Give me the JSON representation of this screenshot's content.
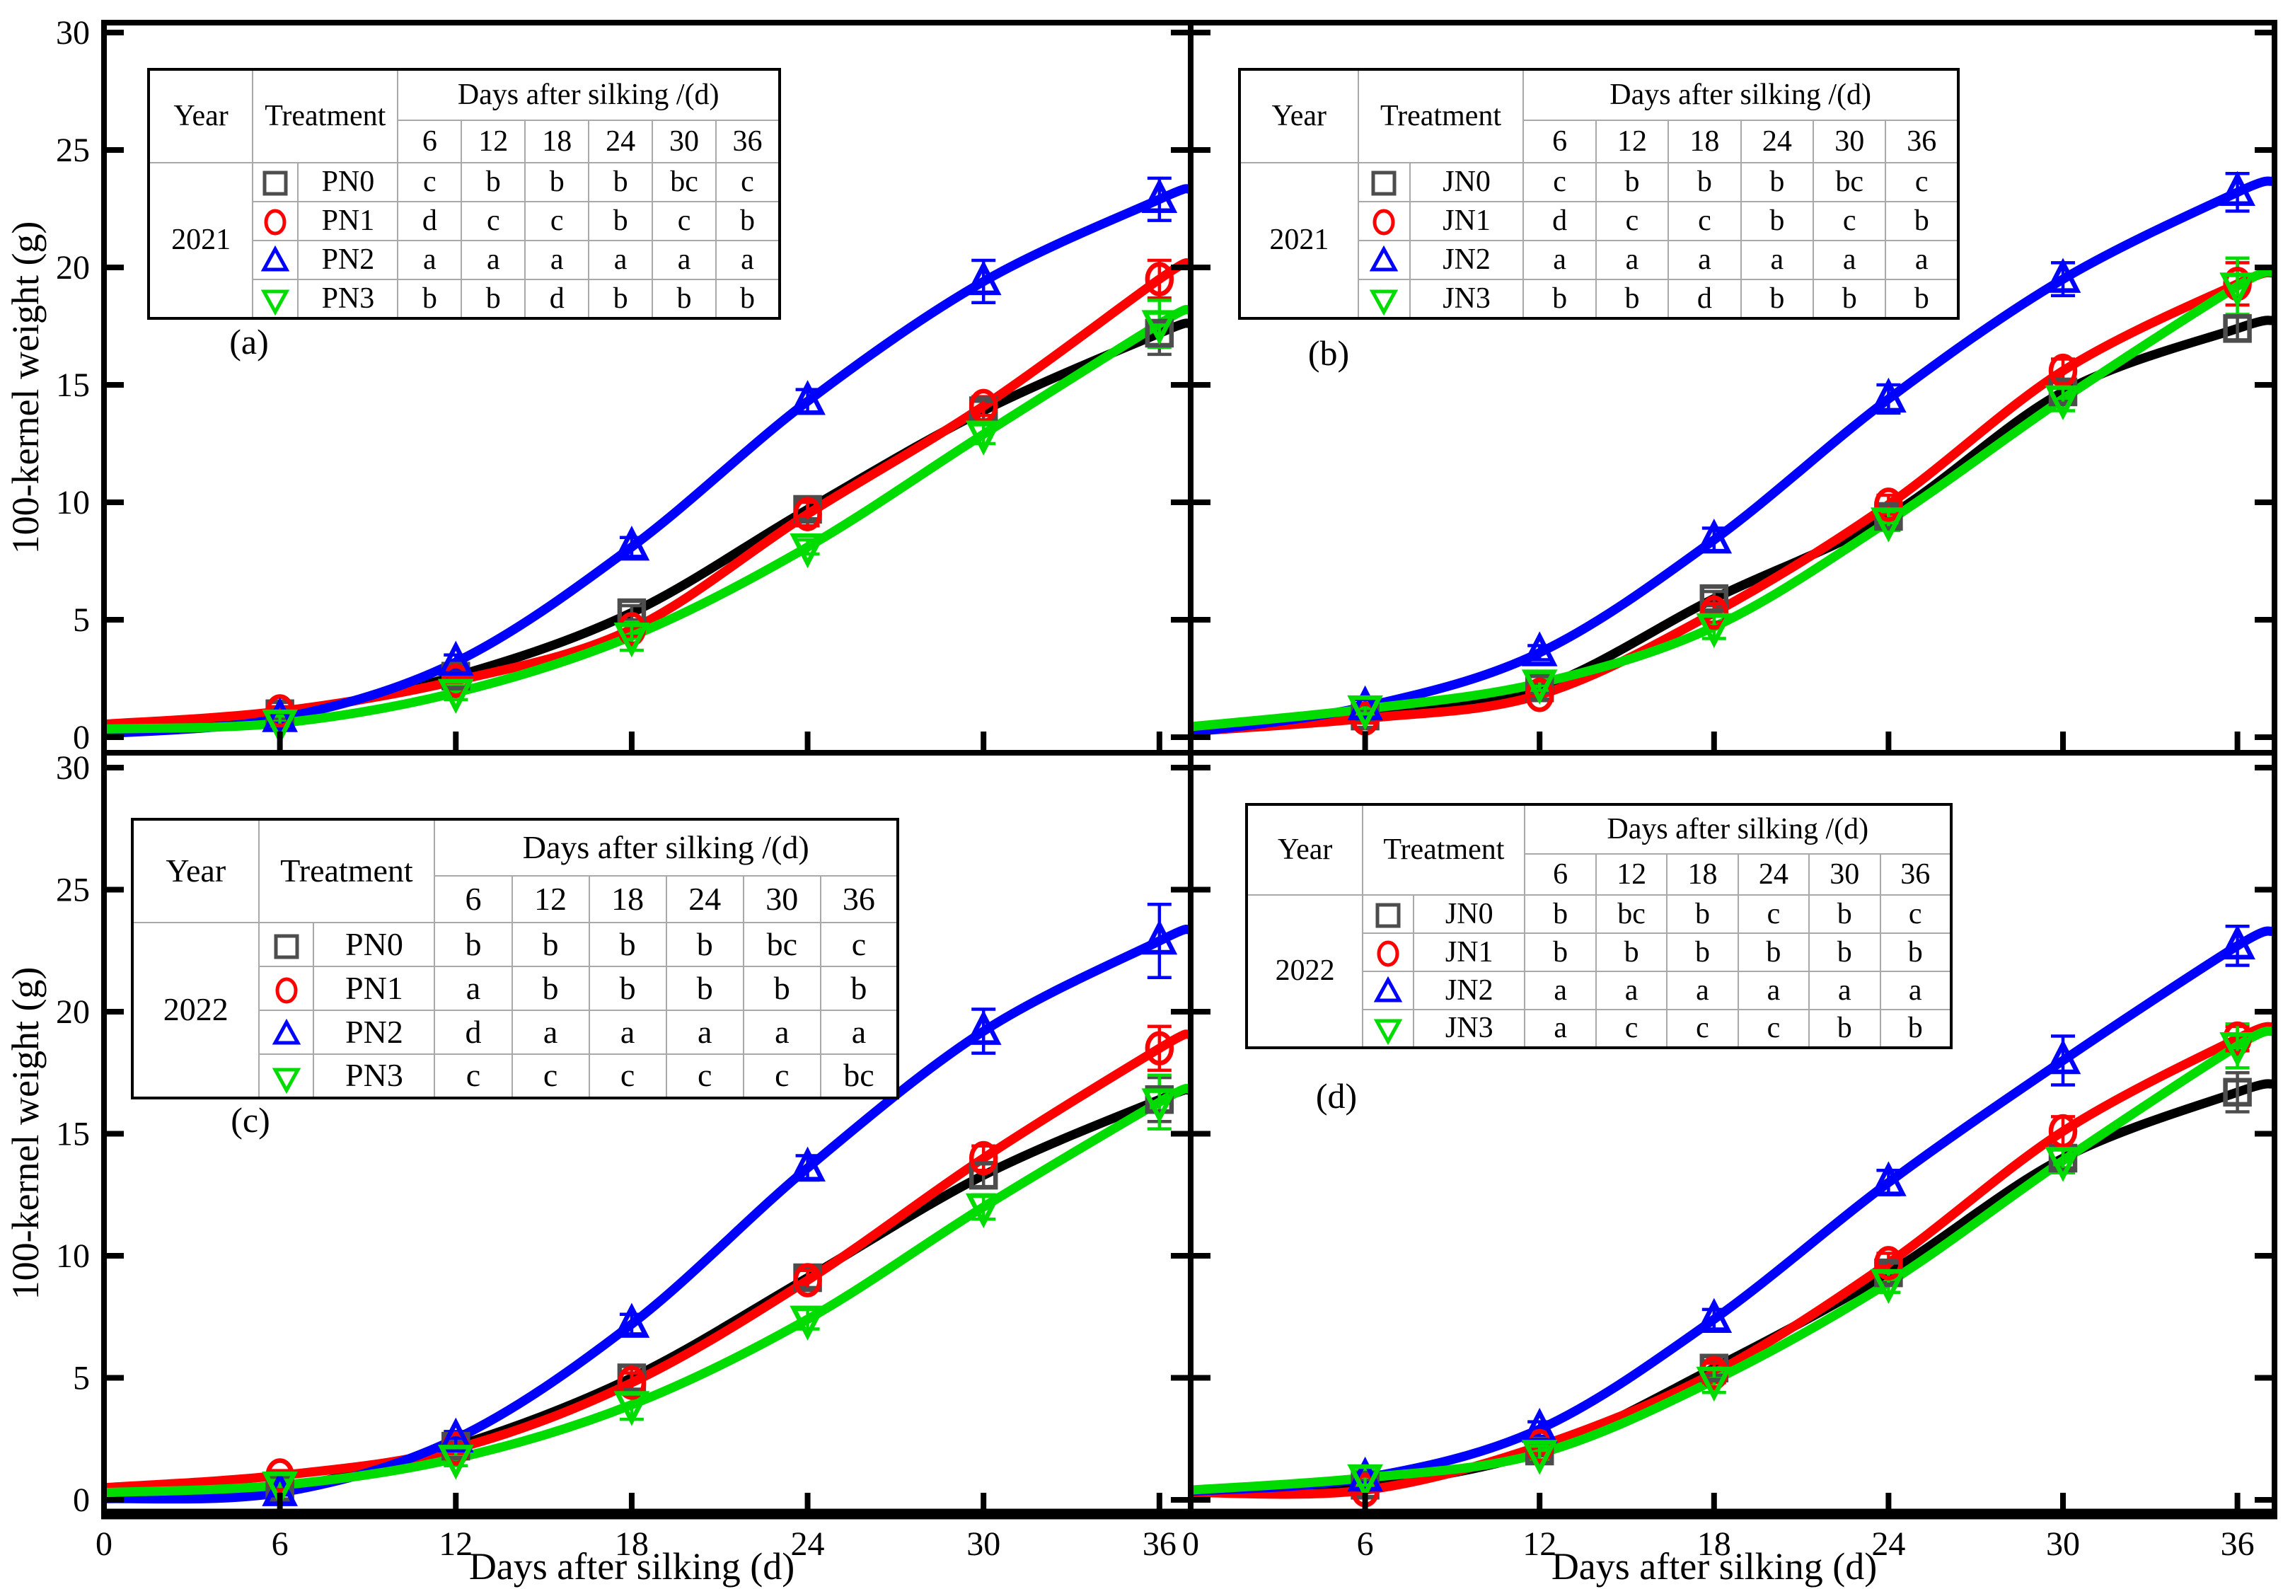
{
  "figure": {
    "y_axis_label_top": "100-kernel weight (g)",
    "y_axis_label_bottom": "100-kernel weight (g)",
    "x_axis_label_left": "Days after silking (d)",
    "x_axis_label_right": "Days after silking (d)"
  },
  "table_header": {
    "year": "Year",
    "treatment": "Treatment",
    "days_group": "Days after silking /(d)",
    "day_columns": [
      "6",
      "12",
      "18",
      "24",
      "30",
      "36"
    ]
  },
  "axes": {
    "x_tick_labels": [
      "0",
      "6",
      "12",
      "18",
      "24",
      "30",
      "36"
    ],
    "y_tick_labels": [
      "0",
      "5",
      "10",
      "15",
      "20",
      "25",
      "30"
    ]
  },
  "chart_data": [
    {
      "panel_label": "(a)",
      "year": "2021",
      "type": "line",
      "x": [
        6,
        12,
        18,
        24,
        30,
        36
      ],
      "xlabel": "Days after silking (d)",
      "ylabel": "100-kernel weight (g)",
      "xlim": [
        0,
        37
      ],
      "ylim": [
        0,
        30
      ],
      "x_ticks": [
        0,
        6,
        12,
        18,
        24,
        30,
        36
      ],
      "y_ticks": [
        0,
        5,
        10,
        15,
        20,
        25,
        30
      ],
      "series": [
        {
          "name": "PN0",
          "marker": "square",
          "marker_color": "#4d4d4d",
          "line_color": "#000000",
          "curve_start": 0.45,
          "values": [
            1.0,
            2.6,
            5.3,
            9.7,
            13.9,
            17.2
          ],
          "errors": [
            0.2,
            0.2,
            0.3,
            0.4,
            0.4,
            0.9
          ],
          "letters": [
            "c",
            "b",
            "b",
            "b",
            "bc",
            "c"
          ]
        },
        {
          "name": "PN1",
          "marker": "circle",
          "marker_color": "#ff0000",
          "line_color": "#ff0000",
          "curve_start": 0.55,
          "values": [
            1.1,
            2.4,
            4.6,
            9.5,
            14.1,
            19.5
          ],
          "errors": [
            0.2,
            0.2,
            0.3,
            0.5,
            0.4,
            0.8
          ],
          "letters": [
            "d",
            "c",
            "c",
            "b",
            "c",
            "b"
          ]
        },
        {
          "name": "PN2",
          "marker": "triangle-up",
          "marker_color": "#0000ff",
          "line_color": "#0000ff",
          "curve_start": 0.15,
          "values": [
            0.8,
            3.2,
            8.1,
            14.3,
            19.4,
            22.9
          ],
          "errors": [
            0.2,
            0.3,
            0.4,
            0.5,
            0.9,
            0.9
          ],
          "letters": [
            "a",
            "a",
            "a",
            "a",
            "a",
            "a"
          ]
        },
        {
          "name": "PN3",
          "marker": "triangle-down",
          "marker_color": "#00dc00",
          "line_color": "#00dc00",
          "curve_start": 0.35,
          "values": [
            0.6,
            1.9,
            4.3,
            8.1,
            12.9,
            17.6
          ],
          "errors": [
            0.3,
            0.3,
            0.6,
            0.3,
            0.4,
            1.0
          ],
          "letters": [
            "b",
            "b",
            "d",
            "b",
            "b",
            "b"
          ]
        }
      ]
    },
    {
      "panel_label": "(b)",
      "year": "2021",
      "type": "line",
      "x": [
        6,
        12,
        18,
        24,
        30,
        36
      ],
      "xlabel": "Days after silking (d)",
      "ylabel": "100-kernel weight (g)",
      "xlim": [
        0,
        37
      ],
      "ylim": [
        0,
        30
      ],
      "x_ticks": [
        0,
        6,
        12,
        18,
        24,
        30,
        36
      ],
      "y_ticks": [
        0,
        5,
        10,
        15,
        20,
        25,
        30
      ],
      "series": [
        {
          "name": "JN0",
          "marker": "square",
          "marker_color": "#4d4d4d",
          "line_color": "#000000",
          "curve_start": 0.35,
          "values": [
            0.9,
            2.1,
            5.9,
            9.4,
            14.7,
            17.4
          ],
          "errors": [
            0.2,
            0.2,
            0.3,
            0.4,
            0.4,
            0.5
          ],
          "letters": [
            "c",
            "b",
            "b",
            "b",
            "bc",
            "c"
          ]
        },
        {
          "name": "JN1",
          "marker": "circle",
          "marker_color": "#ff0000",
          "line_color": "#ff0000",
          "curve_start": 0.25,
          "values": [
            0.8,
            1.8,
            5.3,
            9.9,
            15.6,
            19.3
          ],
          "errors": [
            0.2,
            0.2,
            0.4,
            0.4,
            0.5,
            0.9
          ],
          "letters": [
            "d",
            "c",
            "c",
            "b",
            "c",
            "b"
          ]
        },
        {
          "name": "JN2",
          "marker": "triangle-up",
          "marker_color": "#0000ff",
          "line_color": "#0000ff",
          "curve_start": 0.2,
          "values": [
            1.3,
            3.6,
            8.4,
            14.4,
            19.5,
            23.2
          ],
          "errors": [
            0.3,
            0.3,
            0.5,
            0.6,
            0.7,
            0.8
          ],
          "letters": [
            "a",
            "a",
            "a",
            "a",
            "a",
            "a"
          ]
        },
        {
          "name": "JN3",
          "marker": "triangle-down",
          "marker_color": "#00dc00",
          "line_color": "#00dc00",
          "curve_start": 0.45,
          "values": [
            1.2,
            2.3,
            4.7,
            9.2,
            14.4,
            19.2
          ],
          "errors": [
            0.2,
            0.3,
            0.5,
            0.4,
            0.5,
            1.2
          ],
          "letters": [
            "b",
            "b",
            "d",
            "b",
            "b",
            "b"
          ]
        }
      ]
    },
    {
      "panel_label": "(c)",
      "year": "2022",
      "type": "line",
      "x": [
        6,
        12,
        18,
        24,
        30,
        36
      ],
      "xlabel": "Days after silking (d)",
      "ylabel": "100-kernel weight (g)",
      "xlim": [
        0,
        37
      ],
      "ylim": [
        0,
        30
      ],
      "x_ticks": [
        0,
        6,
        12,
        18,
        24,
        30,
        36
      ],
      "y_ticks": [
        0,
        5,
        10,
        15,
        20,
        25,
        30
      ],
      "series": [
        {
          "name": "PN0",
          "marker": "square",
          "marker_color": "#4d4d4d",
          "line_color": "#000000",
          "curve_start": 0.4,
          "values": [
            0.5,
            2.2,
            5.0,
            9.1,
            13.3,
            16.4
          ],
          "errors": [
            0.1,
            0.2,
            0.5,
            0.4,
            0.5,
            0.9
          ],
          "letters": [
            "b",
            "b",
            "b",
            "b",
            "bc",
            "c"
          ]
        },
        {
          "name": "PN1",
          "marker": "circle",
          "marker_color": "#ff0000",
          "line_color": "#ff0000",
          "curve_start": 0.5,
          "values": [
            1.0,
            2.1,
            4.8,
            9.0,
            14.0,
            18.5
          ],
          "errors": [
            0.2,
            0.2,
            0.4,
            0.4,
            0.5,
            0.9
          ],
          "letters": [
            "a",
            "b",
            "b",
            "b",
            "b",
            "b"
          ]
        },
        {
          "name": "PN2",
          "marker": "triangle-up",
          "marker_color": "#0000ff",
          "line_color": "#0000ff",
          "curve_start": 0.05,
          "values": [
            0.3,
            2.5,
            7.2,
            13.6,
            19.2,
            22.9
          ],
          "errors": [
            0.1,
            0.3,
            0.4,
            0.5,
            0.9,
            1.5
          ],
          "letters": [
            "d",
            "a",
            "a",
            "a",
            "a",
            "a"
          ]
        },
        {
          "name": "PN3",
          "marker": "triangle-down",
          "marker_color": "#00dc00",
          "line_color": "#00dc00",
          "curve_start": 0.3,
          "values": [
            0.6,
            1.7,
            3.9,
            7.4,
            12.0,
            16.3
          ],
          "errors": [
            0.2,
            0.3,
            0.6,
            0.4,
            0.5,
            1.1
          ],
          "letters": [
            "c",
            "c",
            "c",
            "c",
            "c",
            "bc"
          ]
        }
      ]
    },
    {
      "panel_label": "(d)",
      "year": "2022",
      "type": "line",
      "x": [
        6,
        12,
        18,
        24,
        30,
        36
      ],
      "xlabel": "Days after silking (d)",
      "ylabel": "100-kernel weight (g)",
      "xlim": [
        0,
        37
      ],
      "ylim": [
        0,
        30
      ],
      "x_ticks": [
        0,
        6,
        12,
        18,
        24,
        30,
        36
      ],
      "y_ticks": [
        0,
        5,
        10,
        15,
        20,
        25,
        30
      ],
      "series": [
        {
          "name": "JN0",
          "marker": "square",
          "marker_color": "#4d4d4d",
          "line_color": "#000000",
          "curve_start": 0.3,
          "values": [
            0.6,
            2.0,
            5.4,
            9.3,
            14.0,
            16.7
          ],
          "errors": [
            0.2,
            0.2,
            0.3,
            0.4,
            0.4,
            0.8
          ],
          "letters": [
            "b",
            "bc",
            "b",
            "c",
            "b",
            "c"
          ]
        },
        {
          "name": "JN1",
          "marker": "circle",
          "marker_color": "#ff0000",
          "line_color": "#ff0000",
          "curve_start": 0.3,
          "values": [
            0.4,
            2.2,
            5.2,
            9.7,
            15.1,
            18.9
          ],
          "errors": [
            0.3,
            0.3,
            0.4,
            0.4,
            0.6,
            0.5
          ],
          "letters": [
            "b",
            "b",
            "b",
            "b",
            "b",
            "b"
          ]
        },
        {
          "name": "JN2",
          "marker": "triangle-up",
          "marker_color": "#0000ff",
          "line_color": "#0000ff",
          "curve_start": 0.35,
          "values": [
            0.9,
            2.9,
            7.4,
            13.0,
            18.0,
            22.7
          ],
          "errors": [
            0.2,
            0.3,
            0.4,
            0.5,
            1.0,
            0.8
          ],
          "letters": [
            "a",
            "a",
            "a",
            "a",
            "a",
            "a"
          ]
        },
        {
          "name": "JN3",
          "marker": "triangle-down",
          "marker_color": "#00dc00",
          "line_color": "#00dc00",
          "curve_start": 0.4,
          "values": [
            0.9,
            1.9,
            4.9,
            8.9,
            13.9,
            18.6
          ],
          "errors": [
            0.3,
            0.3,
            0.5,
            0.4,
            0.5,
            0.9
          ],
          "letters": [
            "a",
            "c",
            "c",
            "c",
            "b",
            "b"
          ]
        }
      ]
    }
  ]
}
